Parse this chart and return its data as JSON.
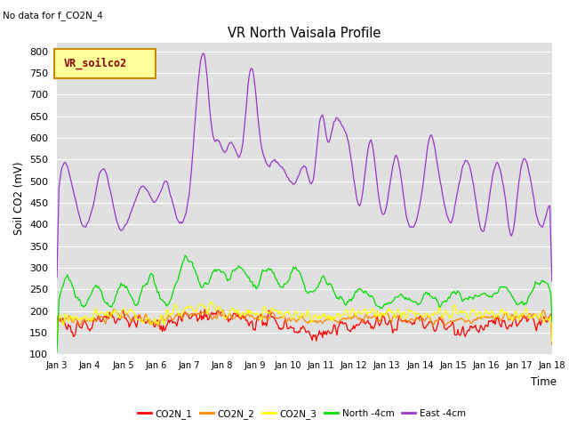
{
  "title": "VR North Vaisala Profile",
  "subtitle": "No data for f_CO2N_4",
  "ylabel": "Soil CO2 (mV)",
  "xlabel": "Time",
  "ylim": [
    100,
    820
  ],
  "yticks": [
    100,
    150,
    200,
    250,
    300,
    350,
    400,
    450,
    500,
    550,
    600,
    650,
    700,
    750,
    800
  ],
  "bg_color": "#e0e0e0",
  "legend_box_label": "VR_soilco2",
  "legend_box_color": "#ffff99",
  "legend_box_border": "#cc8800",
  "series": {
    "CO2N_1": {
      "color": "#ff0000",
      "label": "CO2N_1"
    },
    "CO2N_2": {
      "color": "#ff8800",
      "label": "CO2N_2"
    },
    "CO2N_3": {
      "color": "#ffff00",
      "label": "CO2N_3"
    },
    "North_4cm": {
      "color": "#00dd00",
      "label": "North -4cm"
    },
    "East_4cm": {
      "color": "#9933cc",
      "label": "East -4cm"
    }
  },
  "x_tick_labels": [
    "Jan 3",
    "Jan 4",
    "Jan 5",
    "Jan 6",
    "Jan 7",
    "Jan 8",
    "Jan 9",
    "Jan 10",
    "Jan 11",
    "Jan 12",
    "Jan 13",
    "Jan 14",
    "Jan 15",
    "Jan 16",
    "Jan 17",
    "Jan 18"
  ],
  "num_points": 480,
  "seed": 42
}
